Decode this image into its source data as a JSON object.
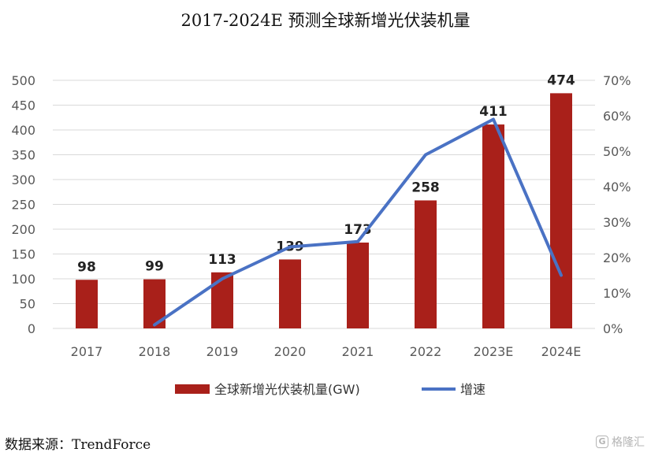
{
  "title": "2017-2024E 预测全球新增光伏装机量",
  "source": "数据来源：TrendForce",
  "watermark": "格隆汇",
  "colors": {
    "bar": "#A9201A",
    "line": "#4A72C4",
    "axis_text": "#595959",
    "grid": "#D9D9D9"
  },
  "chart_data": {
    "type": "bar",
    "categories": [
      "2017",
      "2018",
      "2019",
      "2020",
      "2021",
      "2022",
      "2023E",
      "2024E"
    ],
    "series": [
      {
        "name": "全球新增光伏装机量(GW)",
        "type": "bar",
        "axis": "left",
        "values": [
          98,
          99,
          113,
          139,
          173,
          258,
          411,
          474
        ],
        "data_labels": [
          "98",
          "99",
          "113",
          "139",
          "173",
          "258",
          "411",
          "474"
        ]
      },
      {
        "name": "增速",
        "type": "line",
        "axis": "right",
        "values": [
          null,
          0.01,
          0.14,
          0.23,
          0.245,
          0.49,
          0.59,
          0.15
        ]
      }
    ],
    "ylim": [
      0,
      500
    ],
    "yticks": [
      "0",
      "50",
      "100",
      "150",
      "200",
      "250",
      "300",
      "350",
      "400",
      "450",
      "500"
    ],
    "y2lim": [
      0,
      0.7
    ],
    "y2ticks": [
      "0%",
      "10%",
      "20%",
      "30%",
      "40%",
      "50%",
      "60%",
      "70%"
    ],
    "grid": true,
    "legend_position": "bottom"
  }
}
